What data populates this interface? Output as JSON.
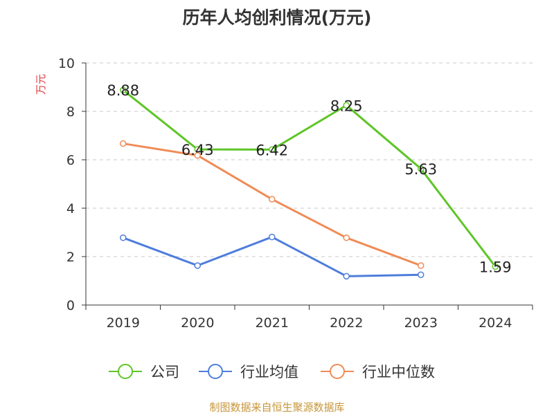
{
  "chart_data": {
    "type": "line",
    "title": "历年人均创利情况(万元)",
    "ylabel": "万元",
    "xlabel": "",
    "categories": [
      "2019",
      "2020",
      "2021",
      "2022",
      "2023",
      "2024"
    ],
    "ylim": [
      0,
      10
    ],
    "yticks": [
      0,
      2,
      4,
      6,
      8,
      10
    ],
    "grid": true,
    "legend_position": "bottom",
    "series": [
      {
        "name": "公司",
        "color": "#5ec527",
        "values": [
          8.88,
          6.43,
          6.42,
          8.25,
          5.63,
          1.59
        ],
        "labels": [
          "8.88",
          "6.43",
          "6.42",
          "8.25",
          "5.63",
          "1.59"
        ]
      },
      {
        "name": "行业均值",
        "color": "#4e7ddb",
        "values": [
          2.78,
          1.63,
          2.81,
          1.19,
          1.25,
          null
        ]
      },
      {
        "name": "行业中位数",
        "color": "#f08b55",
        "values": [
          6.67,
          6.18,
          4.37,
          2.78,
          1.63,
          null
        ]
      }
    ]
  },
  "source_text": "制图数据来自恒生聚源数据库"
}
